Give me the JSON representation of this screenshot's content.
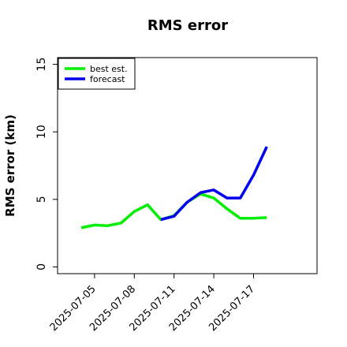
{
  "chart_data": {
    "type": "line",
    "title": "RMS error",
    "ylabel": "RMS error (km)",
    "x": [
      "2025-07-04",
      "2025-07-05",
      "2025-07-06",
      "2025-07-07",
      "2025-07-08",
      "2025-07-09",
      "2025-07-10",
      "2025-07-11",
      "2025-07-12",
      "2025-07-13",
      "2025-07-14",
      "2025-07-15",
      "2025-07-16",
      "2025-07-17",
      "2025-07-18"
    ],
    "series": [
      {
        "name": "best est.",
        "color": "#00ee00",
        "values": [
          2.9,
          3.1,
          3.05,
          3.25,
          4.1,
          4.6,
          3.5,
          3.8,
          4.8,
          5.4,
          5.1,
          4.3,
          3.6,
          3.6,
          3.65
        ]
      },
      {
        "name": "forecast",
        "color": "#0000ee",
        "values": [
          null,
          null,
          null,
          null,
          null,
          null,
          3.5,
          3.75,
          4.8,
          5.5,
          5.7,
          5.1,
          5.1,
          6.8,
          8.9
        ]
      }
    ],
    "xlim": [
      "2025-07-02T05:00:00Z",
      "2025-07-21T19:00:00Z"
    ],
    "xticks": [
      "2025-07-05",
      "2025-07-08",
      "2025-07-11",
      "2025-07-14",
      "2025-07-17"
    ],
    "ylim": [
      -0.5,
      15.5
    ],
    "yticks": [
      0,
      5,
      10,
      15
    ],
    "legend": "top-left"
  }
}
